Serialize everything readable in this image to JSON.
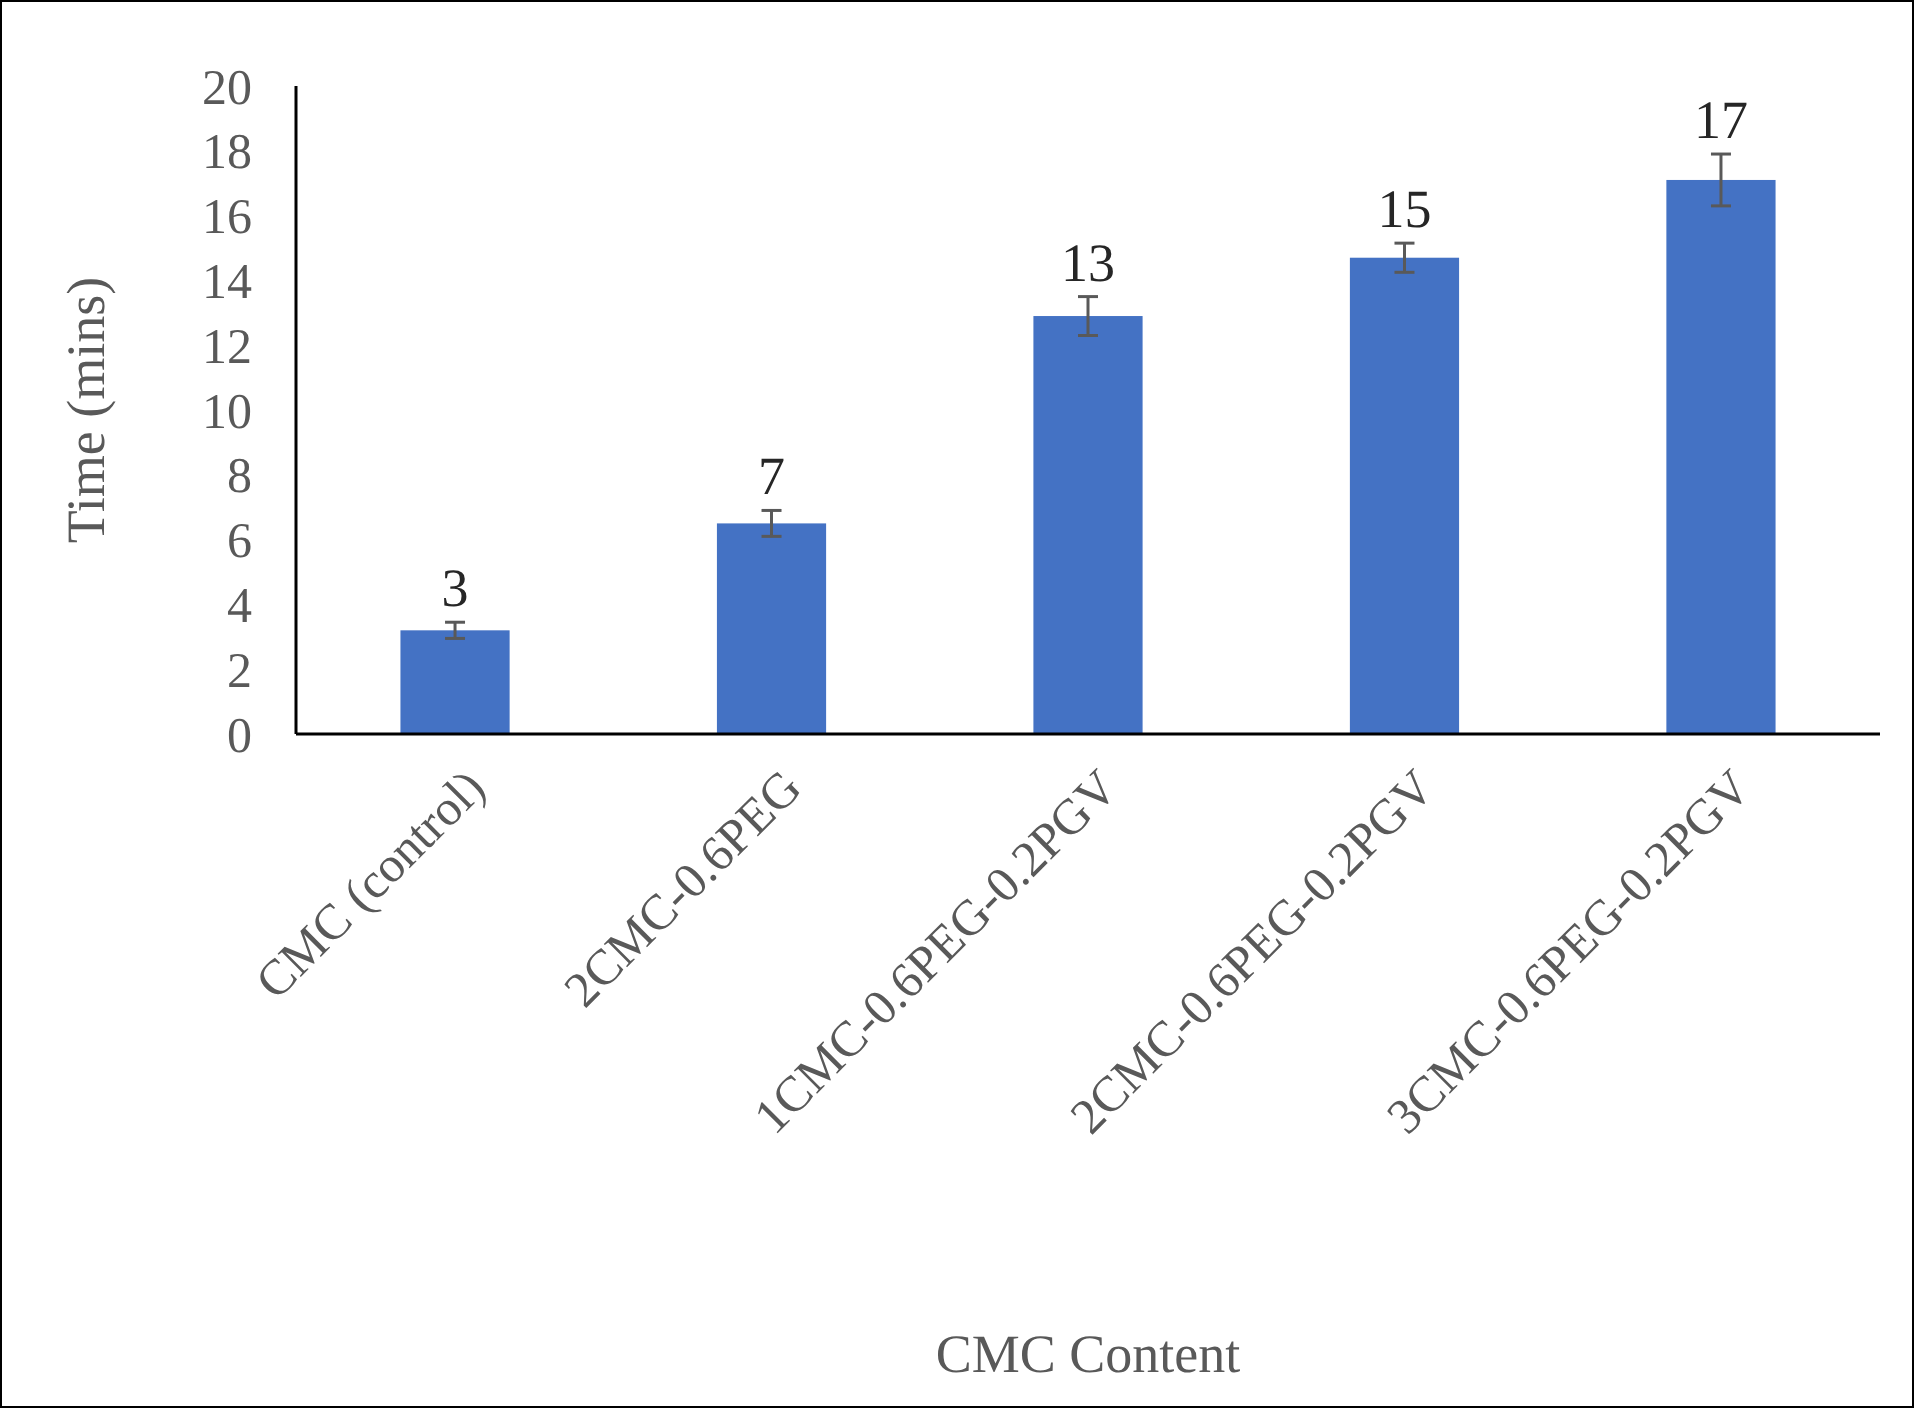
{
  "chart_data": {
    "type": "bar",
    "xlabel": "CMC Content",
    "ylabel": "Time (mins)",
    "categories": [
      "CMC (control)",
      "2CMC-0.6PEG",
      "1CMC-0.6PEG-0.2PGV",
      "2CMC-0.6PEG-0.2PGV",
      "3CMC-0.6PEG-0.2PGV"
    ],
    "values": [
      3.2,
      6.5,
      12.9,
      14.7,
      17.1
    ],
    "errors": [
      0.25,
      0.4,
      0.6,
      0.45,
      0.8
    ],
    "value_labels": [
      "3",
      "7",
      "13",
      "15",
      "17"
    ],
    "color": "#4472c4",
    "ylim": [
      0,
      20
    ],
    "yticks": [
      0,
      2,
      4,
      6,
      8,
      10,
      12,
      14,
      16,
      18,
      20
    ]
  }
}
